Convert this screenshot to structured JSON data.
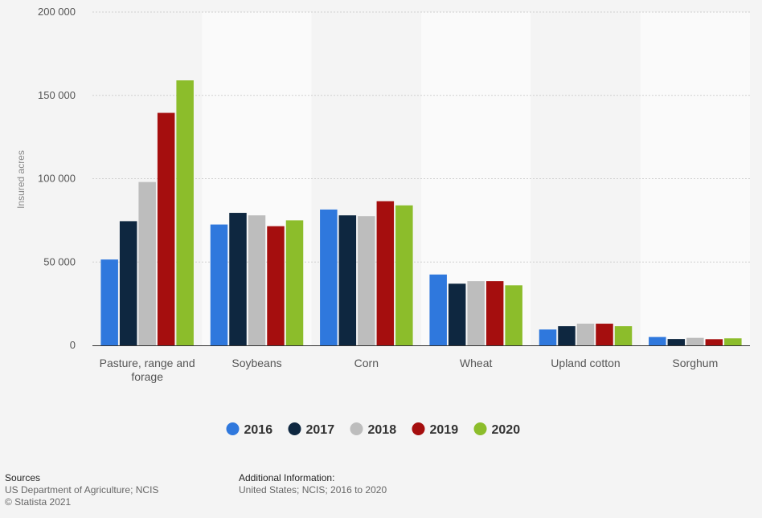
{
  "chart_data": {
    "type": "bar",
    "ylabel": "Insured acres",
    "ylim": [
      0,
      200000
    ],
    "yticks": [
      0,
      50000,
      100000,
      150000,
      200000
    ],
    "ytick_labels": [
      "0",
      "50 000",
      "100 000",
      "150 000",
      "200 000"
    ],
    "categories": [
      "Pasture, range and forage",
      "Soybeans",
      "Corn",
      "Wheat",
      "Upland cotton",
      "Sorghum"
    ],
    "series": [
      {
        "name": "2016",
        "color": "#2f78dd",
        "values": [
          51500,
          72500,
          81500,
          42500,
          9500,
          5000
        ]
      },
      {
        "name": "2017",
        "color": "#0e2740",
        "values": [
          74500,
          79500,
          78000,
          37000,
          11500,
          3800
        ]
      },
      {
        "name": "2018",
        "color": "#bdbdbd",
        "values": [
          98000,
          78000,
          77500,
          38500,
          13000,
          4500
        ]
      },
      {
        "name": "2019",
        "color": "#a50e0e",
        "values": [
          139500,
          71500,
          86500,
          38500,
          13000,
          3700
        ]
      },
      {
        "name": "2020",
        "color": "#8cbd2b",
        "values": [
          159000,
          75000,
          84000,
          36000,
          11500,
          4200
        ]
      }
    ],
    "grid": true,
    "legend_position": "bottom"
  },
  "footer": {
    "sources_title": "Sources",
    "sources_line1": "US Department of Agriculture; NCIS",
    "sources_line2": "© Statista 2021",
    "additional_title": "Additional Information:",
    "additional_line1": "United States; NCIS; 2016 to 2020"
  }
}
